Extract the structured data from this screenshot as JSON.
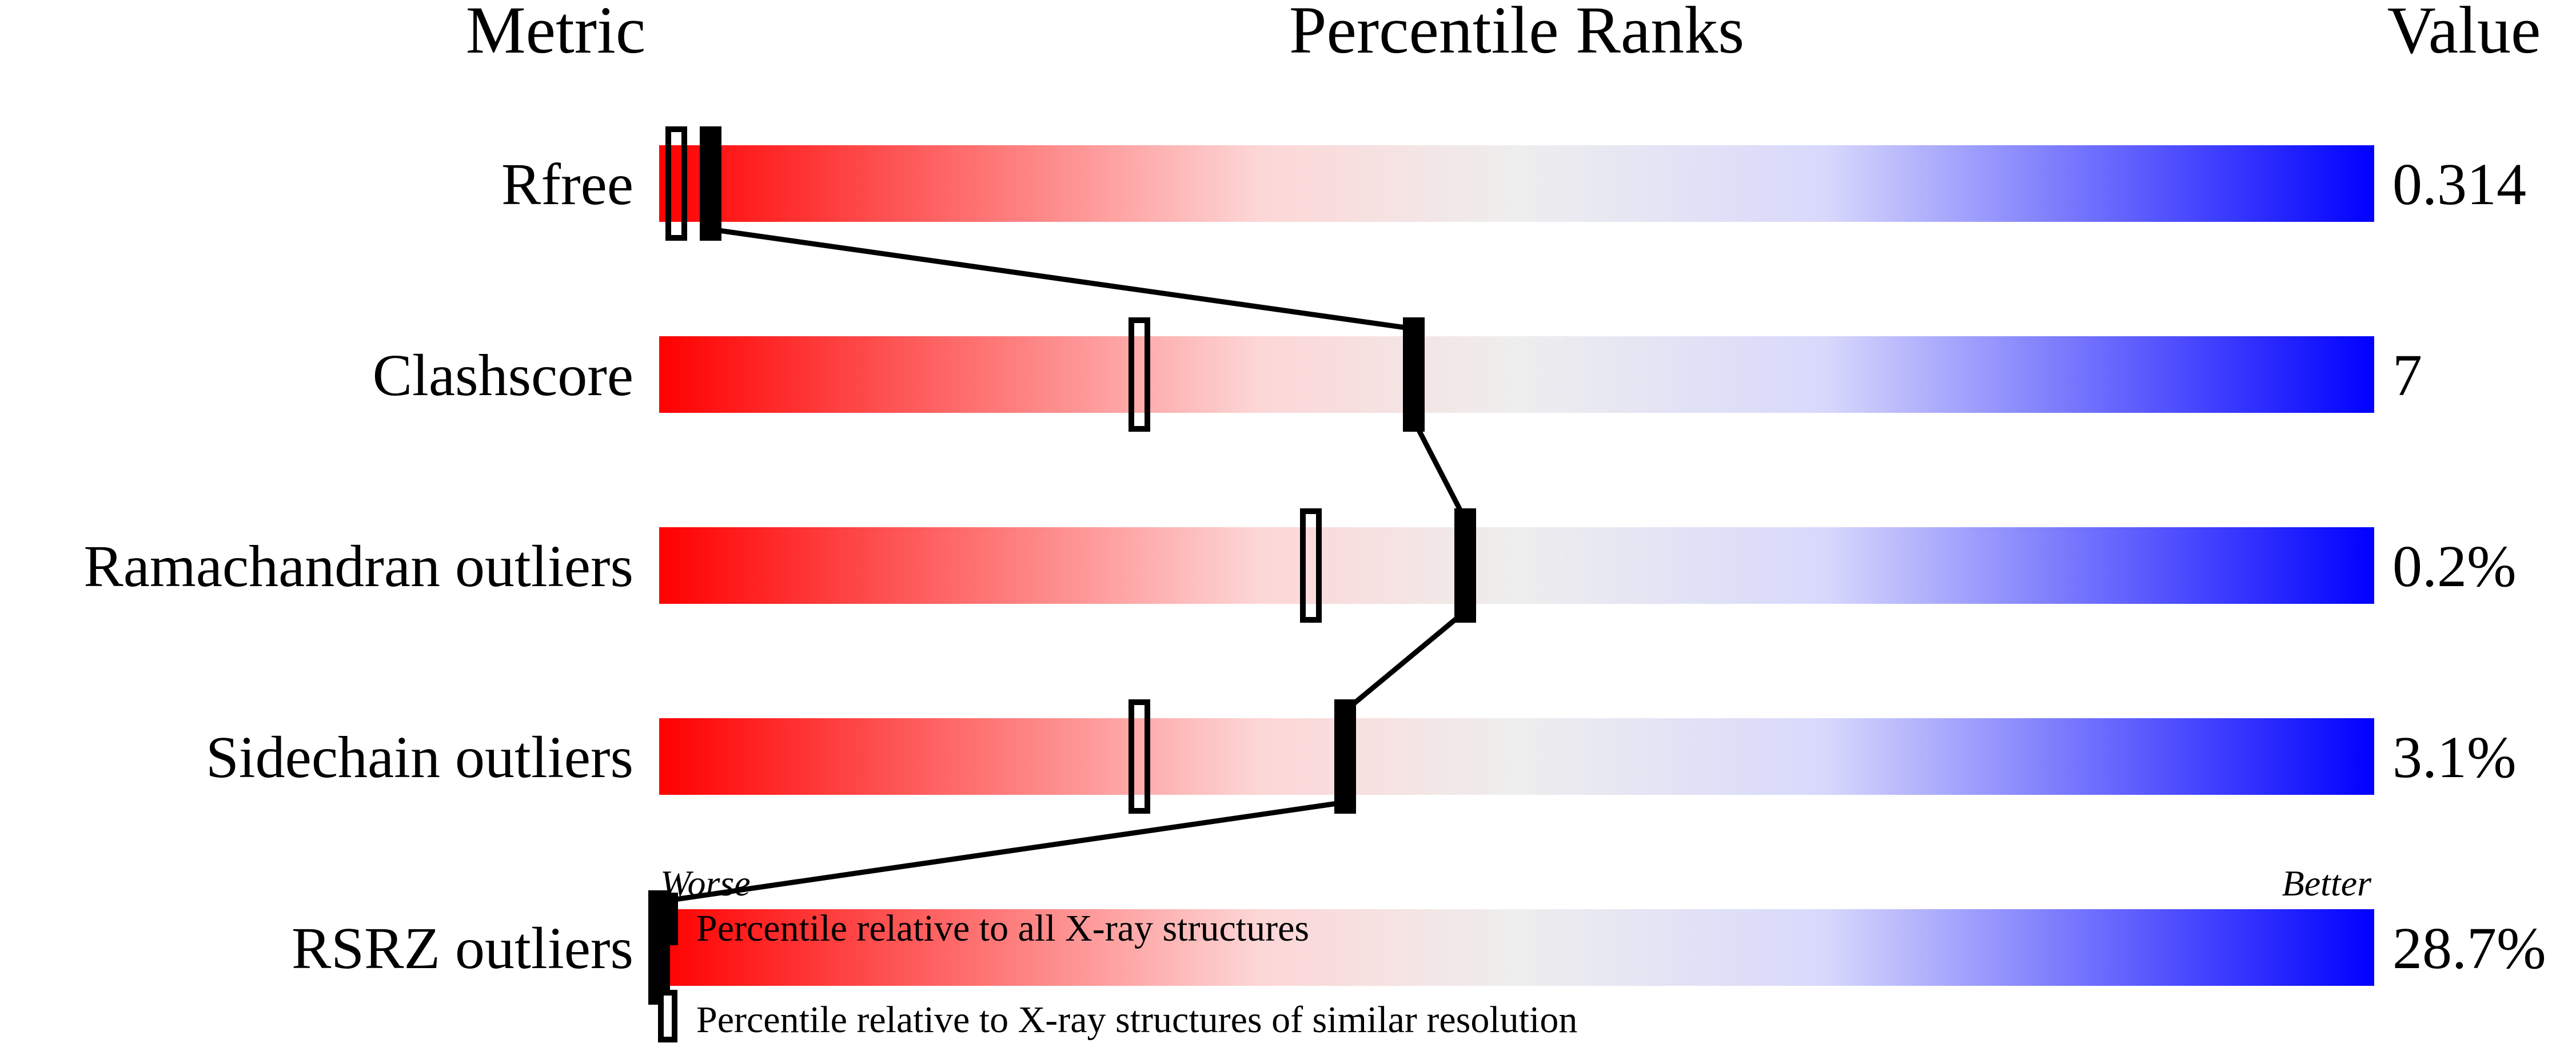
{
  "chart_data": {
    "type": "bar",
    "title": "Percentile Ranks",
    "column_headers": {
      "metric": "Metric",
      "ranks": "Percentile Ranks",
      "value": "Value"
    },
    "categories": [
      "Rfree",
      "Clashscore",
      "Ramachandran outliers",
      "Sidechain outliers",
      "RSRZ outliers"
    ],
    "values_text": [
      "0.314",
      "7",
      "0.2%",
      "3.1%",
      "28.7%"
    ],
    "series": [
      {
        "name": "Percentile relative to all X-ray structures",
        "marker": "filled",
        "values": [
          3,
          44,
          47,
          40,
          0
        ]
      },
      {
        "name": "Percentile relative to X-ray structures of similar resolution",
        "marker": "hollow",
        "values": [
          1,
          28,
          38,
          28,
          null
        ]
      }
    ],
    "xlim": [
      0,
      100
    ],
    "axis_labels": {
      "left": "Worse",
      "right": "Better"
    },
    "gradient_colors": [
      "#ff0000",
      "#fdd6d6",
      "#eeeeee",
      "#d8d8fc",
      "#0000ff"
    ],
    "grid": false,
    "legend_placement": "bottom-left"
  }
}
